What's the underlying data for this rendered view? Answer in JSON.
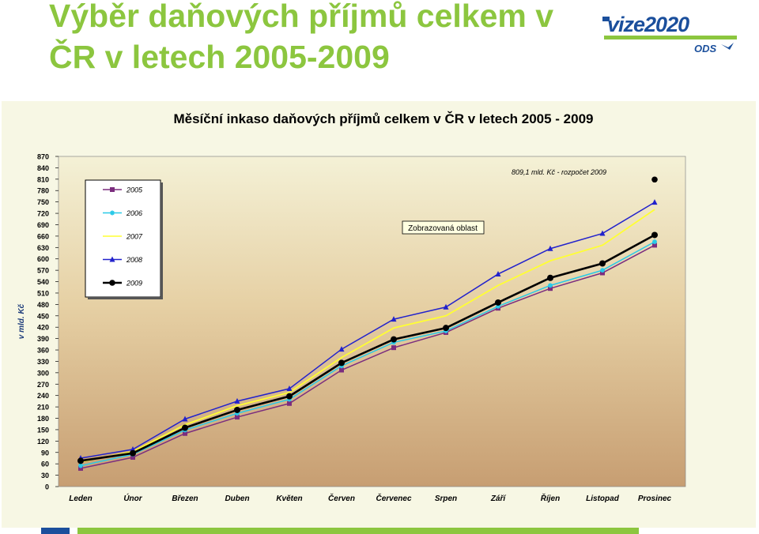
{
  "slide": {
    "title": "Výběr daňových příjmů celkem v ČR v letech 2005-2009"
  },
  "logo": {
    "brand": "vize2020",
    "sub": "ODS",
    "colors": {
      "blue": "#1b4f9c",
      "green": "#8cc63f"
    }
  },
  "chart_data": {
    "type": "line",
    "title": "Měsíční inkaso daňových příjmů celkem v ČR v letech 2005 - 2009",
    "ylabel": "v mld. Kč",
    "xlabel": "",
    "ylim": [
      0,
      870
    ],
    "yticks": [
      0,
      30,
      60,
      90,
      120,
      150,
      180,
      210,
      240,
      270,
      300,
      330,
      360,
      390,
      420,
      450,
      480,
      510,
      540,
      570,
      600,
      630,
      660,
      690,
      720,
      750,
      780,
      810,
      840,
      870
    ],
    "categories": [
      "Leden",
      "Únor",
      "Březen",
      "Duben",
      "Květen",
      "Červen",
      "Červenec",
      "Srpen",
      "Září",
      "Říjen",
      "Listopad",
      "Prosinec"
    ],
    "series": [
      {
        "name": "2005",
        "color": "#7b2d7e",
        "marker": "square",
        "values": [
          48,
          77,
          140,
          183,
          219,
          307,
          366,
          406,
          470,
          522,
          563,
          636
        ]
      },
      {
        "name": "2006",
        "color": "#29c9e8",
        "marker": "star",
        "values": [
          55,
          85,
          149,
          193,
          230,
          318,
          380,
          410,
          475,
          530,
          570,
          645
        ]
      },
      {
        "name": "2007",
        "color": "#ffff33",
        "marker": "none",
        "values": [
          65,
          92,
          163,
          213,
          248,
          340,
          418,
          450,
          530,
          595,
          636,
          730
        ]
      },
      {
        "name": "2008",
        "color": "#2222cc",
        "marker": "triangle",
        "values": [
          75,
          98,
          178,
          225,
          258,
          362,
          441,
          473,
          560,
          627,
          667,
          749
        ]
      },
      {
        "name": "2009",
        "color": "#000000",
        "marker": "circle",
        "values": [
          68,
          88,
          155,
          202,
          238,
          326,
          388,
          418,
          485,
          550,
          588,
          663
        ]
      }
    ],
    "annotations": [
      {
        "text": "809,1 mld. Kč - rozpočet 2009",
        "x": "Prosinec",
        "y": 809.1
      },
      {
        "text": "Zobrazovaná oblast"
      }
    ],
    "legend_position": "top-left",
    "grid": false,
    "plot_background": "gradient beige to brown"
  }
}
